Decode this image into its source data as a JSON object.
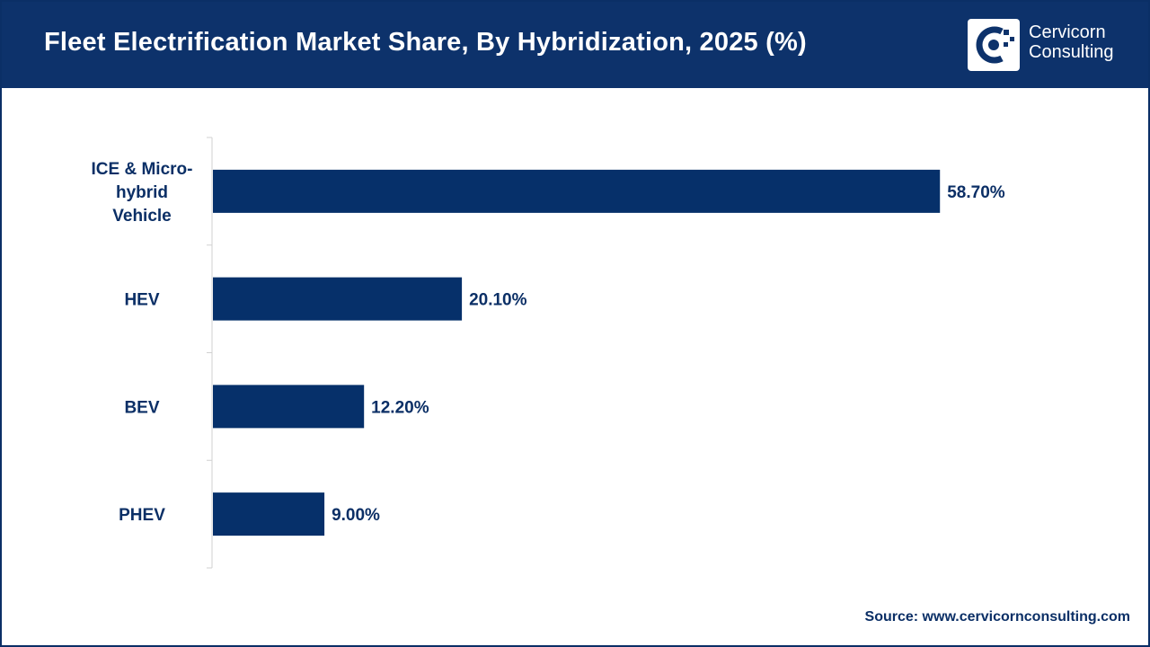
{
  "header": {
    "title": "Fleet Electrification Market Share, By Hybridization, 2025 (%)",
    "brand_line1": "Cervicorn",
    "brand_line2": "Consulting",
    "brand_icon": "cervicorn-logo-icon"
  },
  "footer": {
    "source": "Source: www.cervicornconsulting.com"
  },
  "colors": {
    "header_bg": "#0d326b",
    "bar": "#06306a",
    "label": "#0b2f66",
    "axis": "#d0d0d0"
  },
  "chart_data": {
    "type": "bar",
    "orientation": "horizontal",
    "categories": [
      "ICE & Micro-hybrid Vehicle",
      "HEV",
      "BEV",
      "PHEV"
    ],
    "category_lines": [
      [
        "ICE & Micro-",
        "hybrid",
        "Vehicle"
      ],
      [
        "HEV"
      ],
      [
        "BEV"
      ],
      [
        "PHEV"
      ]
    ],
    "values": [
      58.7,
      20.1,
      12.2,
      9.0
    ],
    "data_labels": [
      "58.70%",
      "20.10%",
      "12.20%",
      "9.00%"
    ],
    "xlim": [
      0,
      70
    ],
    "grid": false,
    "legend": "none"
  }
}
